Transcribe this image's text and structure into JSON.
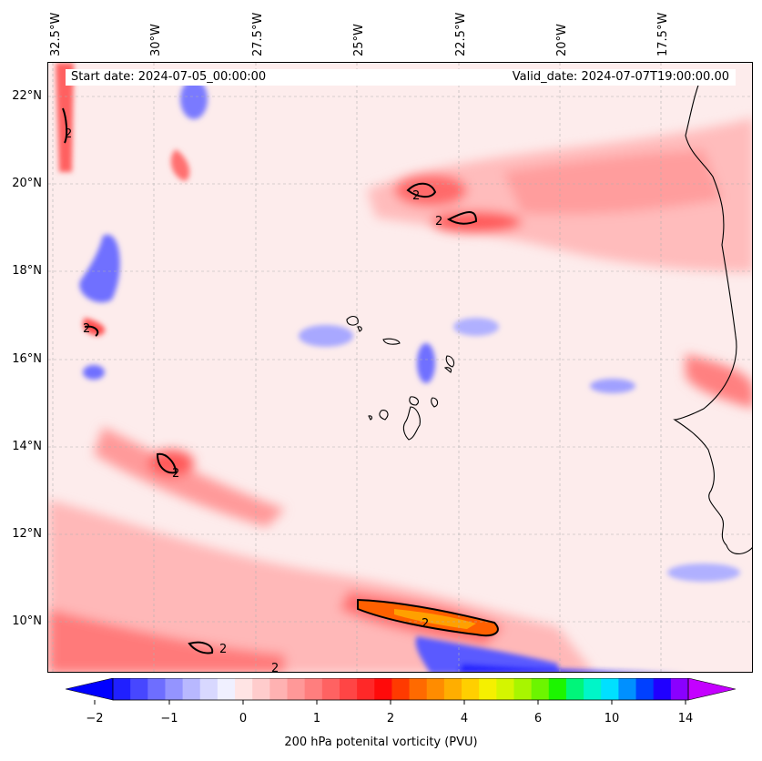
{
  "map": {
    "start_date": "Start date: 2024-07-05_00:00:00",
    "valid_date": "Valid_date: 2024-07-07T19:00:00.00",
    "longitude_labels": [
      "32.5°W",
      "30°W",
      "27.5°W",
      "25°W",
      "22.5°W",
      "20°W",
      "17.5°W"
    ],
    "latitude_labels": [
      "22°N",
      "20°N",
      "18°N",
      "16°N",
      "14°N",
      "12°N",
      "10°N"
    ],
    "contour_label": "2",
    "gridlines": true
  },
  "colorbar": {
    "title": "200 hPa potenital vorticity (PVU)",
    "tick_labels": [
      "−2",
      "−1",
      "0",
      "1",
      "2",
      "4",
      "6",
      "10",
      "14"
    ],
    "colors": [
      "#0000ff",
      "#2020ff",
      "#4747ff",
      "#6e6eff",
      "#9494ff",
      "#b8b8ff",
      "#d8d8ff",
      "#f0f0ff",
      "#ffe4e4",
      "#ffcccc",
      "#ffb2b2",
      "#ff9898",
      "#ff7e7e",
      "#ff6262",
      "#ff4545",
      "#ff2828",
      "#ff0a0a",
      "#ff3a00",
      "#ff6a00",
      "#ff8c00",
      "#ffae00",
      "#ffcf00",
      "#f5f000",
      "#d4f500",
      "#a8f500",
      "#6cf500",
      "#1cf500",
      "#00f57a",
      "#00f5c8",
      "#00e0ff",
      "#0090ff",
      "#0040ff",
      "#2000ff",
      "#8a00ff",
      "#c400ff"
    ],
    "extend": "both"
  }
}
